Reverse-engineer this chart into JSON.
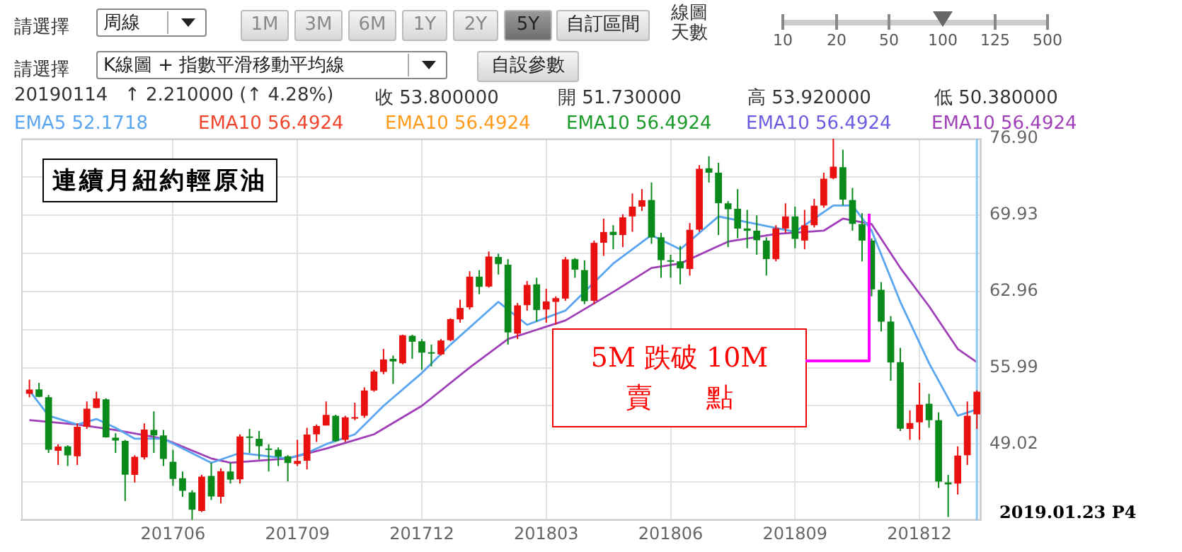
{
  "chart_data": {
    "type": "candlestick",
    "title": "連續月紐約輕原油",
    "x": [
      "2017-02-20",
      "2017-02-27",
      "2017-03-06",
      "2017-03-13",
      "2017-03-20",
      "2017-03-27",
      "2017-04-03",
      "2017-04-10",
      "2017-04-17",
      "2017-04-24",
      "2017-05-01",
      "2017-05-08",
      "2017-05-15",
      "2017-05-22",
      "2017-05-29",
      "2017-06-05",
      "2017-06-12",
      "2017-06-19",
      "2017-06-26",
      "2017-07-03",
      "2017-07-10",
      "2017-07-17",
      "2017-07-24",
      "2017-07-31",
      "2017-08-07",
      "2017-08-14",
      "2017-08-21",
      "2017-08-28",
      "2017-09-04",
      "2017-09-11",
      "2017-09-18",
      "2017-09-25",
      "2017-10-02",
      "2017-10-09",
      "2017-10-16",
      "2017-10-23",
      "2017-10-30",
      "2017-11-06",
      "2017-11-13",
      "2017-11-20",
      "2017-11-27",
      "2017-12-04",
      "2017-12-11",
      "2017-12-18",
      "2017-12-25",
      "2018-01-01",
      "2018-01-08",
      "2018-01-15",
      "2018-01-22",
      "2018-01-29",
      "2018-02-05",
      "2018-02-12",
      "2018-02-19",
      "2018-02-26",
      "2018-03-05",
      "2018-03-12",
      "2018-03-19",
      "2018-03-26",
      "2018-04-02",
      "2018-04-09",
      "2018-04-16",
      "2018-04-23",
      "2018-04-30",
      "2018-05-07",
      "2018-05-14",
      "2018-05-21",
      "2018-05-28",
      "2018-06-04",
      "2018-06-11",
      "2018-06-18",
      "2018-06-25",
      "2018-07-02",
      "2018-07-09",
      "2018-07-16",
      "2018-07-23",
      "2018-07-30",
      "2018-08-06",
      "2018-08-13",
      "2018-08-20",
      "2018-08-27",
      "2018-09-03",
      "2018-09-10",
      "2018-09-17",
      "2018-09-24",
      "2018-10-01",
      "2018-10-08",
      "2018-10-15",
      "2018-10-22",
      "2018-10-29",
      "2018-11-05",
      "2018-11-12",
      "2018-11-19",
      "2018-11-26",
      "2018-12-03",
      "2018-12-10",
      "2018-12-17",
      "2018-12-24",
      "2018-12-31",
      "2019-01-07",
      "2019-01-14"
    ],
    "ohlc": [
      [
        53.6,
        54.9,
        53.3,
        53.99
      ],
      [
        54.0,
        54.6,
        53.3,
        53.33
      ],
      [
        53.3,
        53.5,
        48.2,
        48.49
      ],
      [
        48.4,
        49.0,
        47.1,
        48.78
      ],
      [
        48.8,
        48.9,
        47.0,
        47.97
      ],
      [
        47.9,
        50.9,
        47.1,
        50.6
      ],
      [
        50.6,
        52.9,
        50.4,
        52.24
      ],
      [
        52.3,
        53.8,
        52.3,
        53.18
      ],
      [
        53.1,
        53.2,
        49.6,
        49.62
      ],
      [
        49.6,
        50.0,
        48.2,
        49.33
      ],
      [
        49.3,
        49.4,
        43.8,
        46.22
      ],
      [
        46.2,
        48.0,
        45.5,
        47.84
      ],
      [
        47.8,
        50.9,
        47.6,
        50.33
      ],
      [
        50.3,
        52.0,
        48.2,
        49.8
      ],
      [
        49.8,
        50.3,
        47.0,
        47.66
      ],
      [
        47.4,
        48.5,
        45.2,
        45.83
      ],
      [
        45.9,
        46.5,
        44.2,
        44.74
      ],
      [
        44.6,
        44.8,
        42.1,
        43.01
      ],
      [
        42.9,
        46.2,
        42.8,
        46.04
      ],
      [
        46.1,
        47.3,
        43.9,
        44.23
      ],
      [
        44.2,
        46.8,
        43.6,
        46.54
      ],
      [
        46.5,
        47.3,
        45.4,
        45.77
      ],
      [
        45.8,
        49.9,
        45.4,
        49.71
      ],
      [
        49.7,
        50.4,
        48.2,
        49.58
      ],
      [
        49.5,
        50.2,
        47.6,
        48.82
      ],
      [
        48.6,
        49.0,
        46.5,
        48.51
      ],
      [
        48.5,
        48.7,
        47.0,
        47.87
      ],
      [
        47.9,
        48.0,
        45.6,
        47.29
      ],
      [
        47.2,
        49.4,
        47.0,
        47.48
      ],
      [
        47.5,
        50.5,
        46.7,
        49.89
      ],
      [
        49.9,
        50.8,
        49.2,
        50.66
      ],
      [
        50.7,
        52.9,
        50.7,
        51.67
      ],
      [
        51.6,
        51.7,
        49.2,
        49.29
      ],
      [
        49.4,
        51.6,
        49.2,
        51.45
      ],
      [
        51.4,
        52.8,
        51.2,
        51.47
      ],
      [
        51.6,
        54.2,
        51.4,
        53.9
      ],
      [
        53.9,
        55.8,
        53.8,
        55.64
      ],
      [
        55.6,
        57.7,
        55.4,
        56.74
      ],
      [
        56.8,
        57.1,
        54.5,
        56.55
      ],
      [
        56.4,
        59.0,
        56.3,
        58.95
      ],
      [
        58.9,
        59.0,
        56.8,
        58.36
      ],
      [
        58.4,
        58.6,
        55.8,
        57.36
      ],
      [
        57.4,
        58.1,
        56.1,
        57.3
      ],
      [
        57.2,
        58.6,
        57.1,
        58.47
      ],
      [
        58.5,
        60.5,
        58.4,
        60.42
      ],
      [
        60.4,
        62.2,
        60.1,
        61.44
      ],
      [
        61.5,
        64.8,
        61.3,
        64.3
      ],
      [
        64.3,
        64.9,
        62.7,
        63.37
      ],
      [
        63.4,
        66.6,
        63.3,
        66.14
      ],
      [
        66.1,
        66.4,
        64.5,
        65.45
      ],
      [
        65.4,
        65.9,
        58.1,
        59.2
      ],
      [
        59.1,
        61.9,
        58.6,
        61.68
      ],
      [
        61.7,
        63.9,
        61.2,
        63.55
      ],
      [
        63.6,
        64.2,
        60.2,
        61.25
      ],
      [
        61.3,
        63.2,
        60.1,
        62.04
      ],
      [
        62.0,
        62.5,
        59.9,
        62.34
      ],
      [
        62.3,
        66.1,
        62.1,
        65.88
      ],
      [
        65.9,
        66.0,
        64.2,
        64.94
      ],
      [
        64.9,
        65.8,
        61.8,
        62.06
      ],
      [
        62.1,
        67.6,
        61.8,
        67.39
      ],
      [
        67.4,
        69.6,
        66.2,
        68.38
      ],
      [
        68.4,
        69.0,
        66.8,
        68.1
      ],
      [
        68.1,
        70.0,
        67.0,
        69.72
      ],
      [
        69.8,
        71.9,
        68.4,
        70.7
      ],
      [
        70.7,
        72.3,
        70.3,
        71.28
      ],
      [
        71.3,
        72.9,
        67.3,
        67.88
      ],
      [
        67.9,
        68.3,
        64.2,
        65.81
      ],
      [
        65.8,
        66.3,
        64.2,
        65.74
      ],
      [
        65.7,
        67.1,
        63.6,
        65.06
      ],
      [
        65.0,
        69.2,
        64.4,
        68.58
      ],
      [
        68.6,
        74.5,
        68.4,
        74.15
      ],
      [
        74.2,
        75.3,
        72.9,
        73.8
      ],
      [
        73.8,
        74.7,
        68.1,
        71.01
      ],
      [
        71.0,
        71.2,
        67.0,
        70.46
      ],
      [
        70.5,
        72.3,
        67.8,
        68.69
      ],
      [
        68.7,
        70.4,
        66.9,
        68.49
      ],
      [
        68.5,
        69.9,
        66.3,
        67.63
      ],
      [
        67.6,
        67.9,
        64.4,
        65.91
      ],
      [
        65.9,
        69.0,
        65.7,
        68.72
      ],
      [
        68.7,
        71.0,
        68.3,
        69.8
      ],
      [
        69.8,
        70.7,
        66.9,
        67.75
      ],
      [
        67.6,
        70.4,
        66.8,
        68.99
      ],
      [
        69.0,
        71.4,
        68.8,
        70.78
      ],
      [
        70.8,
        73.8,
        70.6,
        73.25
      ],
      [
        73.3,
        76.9,
        73.2,
        74.34
      ],
      [
        74.3,
        75.9,
        70.8,
        71.34
      ],
      [
        71.3,
        72.4,
        68.5,
        69.12
      ],
      [
        69.1,
        70.1,
        65.7,
        67.59
      ],
      [
        67.6,
        67.8,
        62.5,
        63.14
      ],
      [
        63.1,
        63.8,
        59.3,
        60.19
      ],
      [
        60.2,
        60.7,
        54.8,
        56.46
      ],
      [
        56.5,
        57.8,
        50.2,
        50.42
      ],
      [
        50.4,
        52.1,
        49.4,
        50.93
      ],
      [
        51.0,
        54.6,
        49.4,
        52.61
      ],
      [
        52.7,
        53.6,
        50.5,
        51.2
      ],
      [
        51.2,
        51.9,
        45.0,
        45.59
      ],
      [
        45.5,
        46.2,
        42.36,
        45.33
      ],
      [
        45.4,
        48.8,
        44.4,
        47.96
      ],
      [
        48.0,
        52.9,
        47.1,
        51.59
      ],
      [
        51.73,
        53.92,
        50.38,
        53.8
      ]
    ],
    "colors": [
      "#e8110f",
      "#0a8a1a",
      "#0a8a1a",
      "#e8110f",
      "#0a8a1a",
      "#e8110f",
      "#e8110f",
      "#e8110f",
      "#0a8a1a",
      "#0a8a1a",
      "#0a8a1a",
      "#e8110f",
      "#e8110f",
      "#0a8a1a",
      "#0a8a1a",
      "#0a8a1a",
      "#0a8a1a",
      "#0a8a1a",
      "#e8110f",
      "#0a8a1a",
      "#e8110f",
      "#0a8a1a",
      "#e8110f",
      "#0a8a1a",
      "#0a8a1a",
      "#0a8a1a",
      "#0a8a1a",
      "#0a8a1a",
      "#e8110f",
      "#e8110f",
      "#e8110f",
      "#e8110f",
      "#0a8a1a",
      "#e8110f",
      "#e8110f",
      "#e8110f",
      "#e8110f",
      "#e8110f",
      "#0a8a1a",
      "#e8110f",
      "#0a8a1a",
      "#0a8a1a",
      "#0a8a1a",
      "#e8110f",
      "#e8110f",
      "#e8110f",
      "#e8110f",
      "#0a8a1a",
      "#e8110f",
      "#0a8a1a",
      "#0a8a1a",
      "#e8110f",
      "#e8110f",
      "#0a8a1a",
      "#e8110f",
      "#e8110f",
      "#e8110f",
      "#0a8a1a",
      "#0a8a1a",
      "#e8110f",
      "#e8110f",
      "#0a8a1a",
      "#e8110f",
      "#e8110f",
      "#e8110f",
      "#0a8a1a",
      "#0a8a1a",
      "#0a8a1a",
      "#0a8a1a",
      "#e8110f",
      "#e8110f",
      "#0a8a1a",
      "#0a8a1a",
      "#0a8a1a",
      "#0a8a1a",
      "#0a8a1a",
      "#0a8a1a",
      "#0a8a1a",
      "#e8110f",
      "#e8110f",
      "#0a8a1a",
      "#e8110f",
      "#e8110f",
      "#e8110f",
      "#e8110f",
      "#0a8a1a",
      "#0a8a1a",
      "#0a8a1a",
      "#0a8a1a",
      "#0a8a1a",
      "#0a8a1a",
      "#0a8a1a",
      "#e8110f",
      "#e8110f",
      "#0a8a1a",
      "#0a8a1a",
      "#0a8a1a",
      "#e8110f",
      "#e8110f",
      "#e8110f"
    ],
    "series": [
      {
        "name": "EMA5 52.1718",
        "color": "#5aa5f0",
        "type": "line",
        "x": [
          "2017-02-20",
          "2017-03-06",
          "2017-03-27",
          "2017-04-10",
          "2017-04-24",
          "2017-05-08",
          "2017-05-29",
          "2017-07-03",
          "2017-07-24",
          "2017-08-28",
          "2017-09-11",
          "2017-09-25",
          "2017-10-16",
          "2017-11-06",
          "2017-12-04",
          "2017-12-25",
          "2018-01-29",
          "2018-02-19",
          "2018-03-19",
          "2018-04-23",
          "2018-05-21",
          "2018-06-11",
          "2018-07-09",
          "2018-08-06",
          "2018-09-03",
          "2018-10-01",
          "2018-10-15",
          "2018-10-29",
          "2018-11-19",
          "2018-12-10",
          "2018-12-31",
          "2019-01-14"
        ],
        "values": [
          53.9,
          51.6,
          50.8,
          51.3,
          50.5,
          49.5,
          49.5,
          47.3,
          48.2,
          47.7,
          48.2,
          49.0,
          49.9,
          52.5,
          55.5,
          58.1,
          62.0,
          59.9,
          61.2,
          65.5,
          68.1,
          66.8,
          69.8,
          69.1,
          68.4,
          70.8,
          70.8,
          68.5,
          62.0,
          56.4,
          51.6,
          52.17
        ]
      },
      {
        "name": "EMA10 56.4924",
        "color": "#f0452d",
        "type": "line",
        "values": [
          null,
          null,
          null,
          null,
          null,
          null,
          null,
          null,
          null,
          null,
          null,
          null,
          null,
          null,
          null,
          null,
          null,
          null,
          null,
          null,
          null,
          null,
          null,
          null,
          null,
          null,
          null,
          null,
          null,
          null,
          null,
          null,
          null,
          null,
          null,
          null,
          null,
          null,
          null,
          null,
          null,
          null,
          null,
          null,
          null,
          null,
          null,
          null,
          null,
          null,
          null,
          null,
          null,
          null,
          null,
          null,
          null,
          null,
          null,
          null,
          null,
          null,
          null,
          null,
          null,
          null,
          null,
          null,
          null,
          null,
          null,
          null,
          null,
          null,
          null,
          null,
          null,
          null,
          null,
          null,
          null,
          null,
          null,
          null,
          null,
          null,
          null,
          null,
          null,
          null,
          null,
          null,
          null,
          null,
          null,
          null,
          null,
          null,
          null,
          null
        ]
      },
      {
        "name": "EMA10 56.4924",
        "color": "#ff9a1a",
        "type": "line",
        "values": [
          null,
          null,
          null,
          null,
          null,
          null,
          null,
          null,
          null,
          null,
          null,
          null,
          null,
          null,
          null,
          null,
          null,
          null,
          null,
          null,
          null,
          null,
          null,
          null,
          null,
          null,
          null,
          null,
          null,
          null,
          null,
          null,
          null,
          null,
          null,
          null,
          null,
          null,
          null,
          null,
          null,
          null,
          null,
          null,
          null,
          null,
          null,
          null,
          null,
          null,
          null,
          null,
          null,
          null,
          null,
          null,
          null,
          null,
          null,
          null,
          null,
          null,
          null,
          null,
          null,
          null,
          null,
          null,
          null,
          null,
          null,
          null,
          null,
          null,
          null,
          null,
          null,
          null,
          null,
          null,
          null,
          null,
          null,
          null,
          null,
          null,
          null,
          null,
          null,
          null,
          null,
          null,
          null,
          null,
          null,
          null,
          null,
          null,
          null,
          null
        ]
      },
      {
        "name": "EMA10 56.4924",
        "color": "#1a9a2a",
        "type": "line",
        "values": [
          null,
          null,
          null,
          null,
          null,
          null,
          null,
          null,
          null,
          null,
          null,
          null,
          null,
          null,
          null,
          null,
          null,
          null,
          null,
          null,
          null,
          null,
          null,
          null,
          null,
          null,
          null,
          null,
          null,
          null,
          null,
          null,
          null,
          null,
          null,
          null,
          null,
          null,
          null,
          null,
          null,
          null,
          null,
          null,
          null,
          null,
          null,
          null,
          null,
          null,
          null,
          null,
          null,
          null,
          null,
          null,
          null,
          null,
          null,
          null,
          null,
          null,
          null,
          null,
          null,
          null,
          null,
          null,
          null,
          null,
          null,
          null,
          null,
          null,
          null,
          null,
          null,
          null,
          null,
          null,
          null,
          null,
          null,
          null,
          null,
          null,
          null,
          null,
          null,
          null,
          null,
          null,
          null,
          null,
          null,
          null,
          null,
          null,
          null,
          null
        ]
      },
      {
        "name": "EMA10 56.4924",
        "color": "#6a5ce0",
        "type": "line",
        "values": [
          null,
          null,
          null,
          null,
          null,
          null,
          null,
          null,
          null,
          null,
          null,
          null,
          null,
          null,
          null,
          null,
          null,
          null,
          null,
          null,
          null,
          null,
          null,
          null,
          null,
          null,
          null,
          null,
          null,
          null,
          null,
          null,
          null,
          null,
          null,
          null,
          null,
          null,
          null,
          null,
          null,
          null,
          null,
          null,
          null,
          null,
          null,
          null,
          null,
          null,
          null,
          null,
          null,
          null,
          null,
          null,
          null,
          null,
          null,
          null,
          null,
          null,
          null,
          null,
          null,
          null,
          null,
          null,
          null,
          null,
          null,
          null,
          null,
          null,
          null,
          null,
          null,
          null,
          null,
          null,
          null,
          null,
          null,
          null,
          null,
          null,
          null,
          null,
          null,
          null,
          null,
          null,
          null,
          null,
          null,
          null,
          null,
          null,
          null,
          null
        ]
      },
      {
        "name": "EMA10 56.4924",
        "color": "#a040b8",
        "type": "line",
        "x": [
          "2017-02-20",
          "2017-03-27",
          "2017-04-24",
          "2017-05-29",
          "2017-07-03",
          "2017-07-17",
          "2017-08-28",
          "2017-09-25",
          "2017-10-30",
          "2017-12-04",
          "2018-01-08",
          "2018-02-05",
          "2018-03-19",
          "2018-04-23",
          "2018-05-21",
          "2018-06-11",
          "2018-07-16",
          "2018-08-20",
          "2018-09-24",
          "2018-10-08",
          "2018-10-29",
          "2018-11-19",
          "2018-12-10",
          "2018-12-31",
          "2019-01-14"
        ],
        "values": [
          51.2,
          50.8,
          50.3,
          49.5,
          47.7,
          47.3,
          47.7,
          48.6,
          49.9,
          52.5,
          56.0,
          58.6,
          60.3,
          62.9,
          65.1,
          65.5,
          67.5,
          68.2,
          68.5,
          69.6,
          69.1,
          65.1,
          61.6,
          57.7,
          56.49
        ]
      }
    ],
    "xlim": [
      "2017-02-14",
      "2019-01-17"
    ],
    "xticks": [
      {
        "value": "2017-06-05",
        "label": "201706"
      },
      {
        "value": "2017-09-04",
        "label": "201709"
      },
      {
        "value": "2017-12-04",
        "label": "201712"
      },
      {
        "value": "2018-03-05",
        "label": "201803"
      },
      {
        "value": "2018-06-04",
        "label": "201806"
      },
      {
        "value": "2018-09-03",
        "label": "201809"
      },
      {
        "value": "2018-12-03",
        "label": "201812"
      }
    ],
    "ylim": [
      42.05,
      76.9
    ],
    "yticks": [
      {
        "value": 45.535,
        "label": null
      },
      49.02,
      {
        "value": 52.505,
        "label": null
      },
      55.99,
      {
        "value": 59.475,
        "label": null
      },
      62.96,
      {
        "value": 66.445,
        "label": null
      },
      69.93,
      {
        "value": 73.415,
        "label": null
      },
      {
        "value": 76.9,
        "label": "76.90"
      }
    ],
    "grid": true,
    "legend": "top left",
    "marker": "none",
    "line_style": "solid",
    "ref_lines": [
      {
        "axis": "x",
        "value": "2019-01-14",
        "color": "#8cc8f0"
      }
    ],
    "annotations": [
      "請選擇",
      "周線",
      "1M",
      "3M",
      "6M",
      "1Y",
      "2Y",
      "5Y",
      "自訂區間",
      "線圖天數",
      "10",
      "20",
      "50",
      "100",
      "125",
      "500",
      "請選擇",
      "K線圖 + 指數平滑移動平均線",
      "自設參數",
      "20190114",
      "↑ 2.210000 (↑ 4.28%)",
      "收 53.800000",
      "開 51.730000",
      "高 53.920000",
      "低 50.380000",
      "5M 跌破 10M\n賣　　點",
      "2019.01.23 P4"
    ]
  }
}
